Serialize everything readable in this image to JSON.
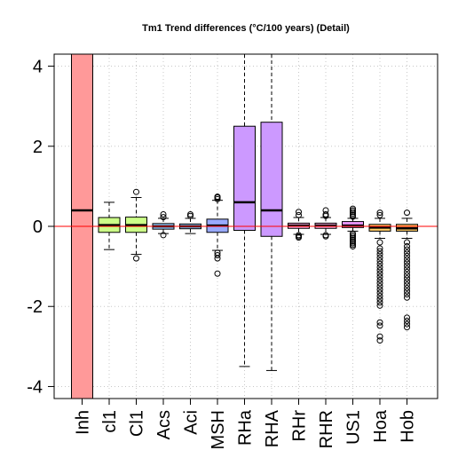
{
  "chart_data": {
    "type": "box",
    "title": "Tm1 Trend differences (°C/100 years) (Detail)",
    "xlabel": "",
    "ylabel": "",
    "ylim": [
      -4.3,
      4.3
    ],
    "yticks": [
      -4,
      -2,
      0,
      2,
      4
    ],
    "grid": true,
    "reference_line": {
      "y": 0,
      "color": "#ff0000"
    },
    "categories": [
      "Inh",
      "cl1",
      "Cl1",
      "Acs",
      "Aci",
      "MSH",
      "RHa",
      "RHA",
      "RHr",
      "RHR",
      "US1",
      "Hoa",
      "Hob"
    ],
    "boxes": [
      {
        "name": "Inh",
        "color": "#ff9999",
        "q1": -4.3,
        "median": 0.4,
        "q3": 4.3,
        "whisker_low": -4.3,
        "whisker_high": 4.3,
        "outliers": []
      },
      {
        "name": "cl1",
        "color": "#ccff88",
        "q1": -0.15,
        "median": 0.03,
        "q3": 0.22,
        "whisker_low": -0.58,
        "whisker_high": 0.6,
        "outliers": []
      },
      {
        "name": "Cl1",
        "color": "#ccff88",
        "q1": -0.15,
        "median": 0.03,
        "q3": 0.23,
        "whisker_low": -0.7,
        "whisker_high": 0.72,
        "outliers": [
          0.86,
          -0.8
        ]
      },
      {
        "name": "Acs",
        "color": "#99ccff",
        "q1": -0.07,
        "median": 0.0,
        "q3": 0.07,
        "whisker_low": -0.18,
        "whisker_high": 0.2,
        "outliers": [
          0.23,
          0.3,
          -0.22
        ]
      },
      {
        "name": "Aci",
        "color": "#99ccff",
        "q1": -0.06,
        "median": 0.0,
        "q3": 0.06,
        "whisker_low": -0.18,
        "whisker_high": 0.2,
        "outliers": [
          0.26,
          0.3
        ]
      },
      {
        "name": "MSH",
        "color": "#99aaff",
        "q1": -0.15,
        "median": 0.02,
        "q3": 0.18,
        "whisker_low": -0.6,
        "whisker_high": 0.65,
        "outliers": [
          0.68,
          0.72,
          0.74,
          -0.66,
          -0.72,
          -0.8,
          -1.18
        ]
      },
      {
        "name": "RHa",
        "color": "#cc99ff",
        "q1": -0.1,
        "median": 0.6,
        "q3": 2.5,
        "whisker_low": -3.5,
        "whisker_high": 4.3,
        "outliers": []
      },
      {
        "name": "RHA",
        "color": "#cc99ff",
        "q1": -0.25,
        "median": 0.4,
        "q3": 2.6,
        "whisker_low": -3.6,
        "whisker_high": 4.3,
        "outliers": []
      },
      {
        "name": "RHr",
        "color": "#ffaadd",
        "q1": -0.05,
        "median": 0.02,
        "q3": 0.08,
        "whisker_low": -0.2,
        "whisker_high": 0.22,
        "outliers": [
          0.28,
          0.36,
          -0.22,
          -0.25,
          -0.28
        ]
      },
      {
        "name": "RHR",
        "color": "#ffaadd",
        "q1": -0.05,
        "median": 0.02,
        "q3": 0.08,
        "whisker_low": -0.2,
        "whisker_high": 0.22,
        "outliers": [
          0.26,
          0.3,
          0.4,
          -0.22,
          -0.25
        ]
      },
      {
        "name": "US1",
        "color": "#ee99ff",
        "q1": -0.03,
        "median": 0.02,
        "q3": 0.12,
        "whisker_low": -0.12,
        "whisker_high": 0.2,
        "outliers": [
          0.24,
          0.28,
          0.32,
          0.36,
          0.4,
          0.44,
          -0.18,
          -0.22,
          -0.26,
          -0.3,
          -0.34,
          -0.38,
          -0.42,
          -0.46,
          -0.5
        ]
      },
      {
        "name": "Hoa",
        "color": "#ffcc66",
        "q1": -0.12,
        "median": -0.03,
        "q3": 0.05,
        "whisker_low": -0.3,
        "whisker_high": 0.2,
        "outliers": [
          0.28,
          0.34,
          -0.4,
          -0.55,
          -0.62,
          -0.7,
          -0.78,
          -0.86,
          -0.94,
          -1.02,
          -1.1,
          -1.18,
          -1.26,
          -1.34,
          -1.42,
          -1.5,
          -1.58,
          -1.66,
          -1.74,
          -1.82,
          -1.9,
          -1.98,
          -2.4,
          -2.48,
          -2.75,
          -2.85
        ]
      },
      {
        "name": "Hob",
        "color": "#ffcc66",
        "q1": -0.12,
        "median": -0.05,
        "q3": 0.05,
        "whisker_low": -0.3,
        "whisker_high": 0.2,
        "outliers": [
          0.34,
          -0.4,
          -0.5,
          -0.58,
          -0.66,
          -0.74,
          -0.82,
          -0.9,
          -0.98,
          -1.06,
          -1.14,
          -1.22,
          -1.3,
          -1.38,
          -1.46,
          -1.54,
          -1.62,
          -1.7,
          -1.78,
          -2.28,
          -2.36,
          -2.44,
          -2.52
        ]
      }
    ]
  }
}
